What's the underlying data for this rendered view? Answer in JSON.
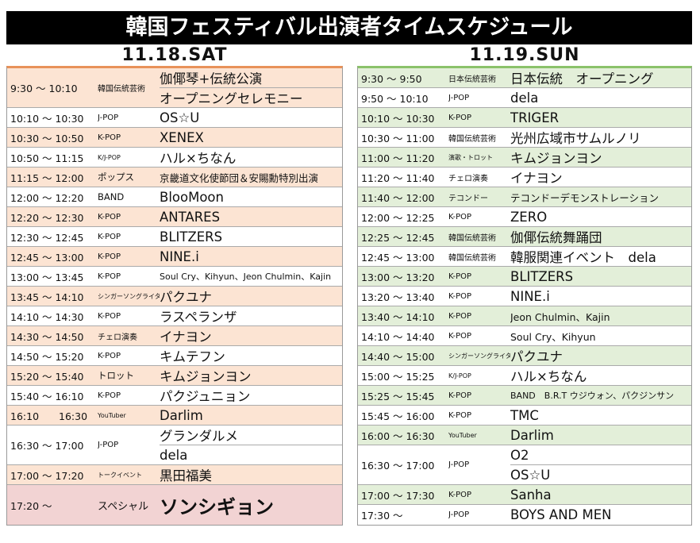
{
  "header": {
    "title": "韓国フェスティバル出演者タイムスケジュール"
  },
  "days": [
    {
      "date": "11.18.SAT",
      "rows": [
        {
          "time": "9:30 ～ 10:10",
          "genre": "韓国伝統芸術",
          "performers": [
            "伽倻琴+伝統公演",
            "オープニングセレモニー"
          ]
        },
        {
          "time": "10:10 ～ 10:30",
          "genre": "J-POP",
          "performers": [
            "OS☆U"
          ]
        },
        {
          "time": "10:30 ～ 10:50",
          "genre": "K-POP",
          "performers": [
            "XENEX"
          ]
        },
        {
          "time": "10:50 ～ 11:15",
          "genre": "K/J-POP",
          "performers": [
            "ハル×ちなん"
          ]
        },
        {
          "time": "11:15 ～ 12:00",
          "genre": "ポップス",
          "performers": [
            "京畿道文化使節団＆安賜勳特別出演"
          ]
        },
        {
          "time": "12:00 ～ 12:20",
          "genre": "BAND",
          "performers": [
            "BlooMoon"
          ]
        },
        {
          "time": "12:20 ～ 12:30",
          "genre": "K-POP",
          "performers": [
            "ANTARES"
          ]
        },
        {
          "time": "12:30 ～ 12:45",
          "genre": "K-POP",
          "performers": [
            "BLITZERS"
          ]
        },
        {
          "time": "12:45 ～ 13:00",
          "genre": "K-POP",
          "performers": [
            "NINE.i"
          ]
        },
        {
          "time": "13:00 ～ 13:45",
          "genre": "K-POP",
          "performers": [
            "Soul Cry、Kihyun、Jeon Chulmin、Kajin"
          ]
        },
        {
          "time": "13:45 ～ 14:10",
          "genre": "シンガーソングライター",
          "performers": [
            "パクユナ"
          ]
        },
        {
          "time": "14:10 ～ 14:30",
          "genre": "K-POP",
          "performers": [
            "ラスペランザ"
          ]
        },
        {
          "time": "14:30 ～ 14:50",
          "genre": "チェロ演奏",
          "performers": [
            "イナヨン"
          ]
        },
        {
          "time": "14:50 ～ 15:20",
          "genre": "K-POP",
          "performers": [
            "キムテフン"
          ]
        },
        {
          "time": "15:20 ～ 15:40",
          "genre": "トロット",
          "performers": [
            "キムジョンヨン"
          ]
        },
        {
          "time": "15:40 ～ 16:10",
          "genre": "K-POP",
          "performers": [
            "パクジュニョン"
          ]
        },
        {
          "time": "16:10　　16:30",
          "genre": "YouTuber",
          "performers": [
            "Darlim"
          ]
        },
        {
          "time": "16:30 ～ 17:00",
          "genre": "J-POP",
          "performers": [
            "グランダルメ",
            "dela"
          ]
        },
        {
          "time": "17:00 ～ 17:20",
          "genre": "トークイベント",
          "performers": [
            "黒田福美"
          ]
        },
        {
          "time": "17:20 ～",
          "genre": "スペシャル",
          "performers": [
            "ソンシギョン"
          ]
        }
      ]
    },
    {
      "date": "11.19.SUN",
      "rows": [
        {
          "time": "9:30 ～ 9:50",
          "genre": "日本伝統芸術",
          "performers": [
            "日本伝統　オープニング"
          ]
        },
        {
          "time": "9:50 ～ 10:10",
          "genre": "J-POP",
          "performers": [
            "dela"
          ]
        },
        {
          "time": "10:10 ～ 10:30",
          "genre": "K-POP",
          "performers": [
            "TRIGER"
          ]
        },
        {
          "time": "10:30 ～ 11:00",
          "genre": "韓国伝統芸術",
          "performers": [
            "光州広域市サムルノリ"
          ]
        },
        {
          "time": "11:00 ～ 11:20",
          "genre": "演歌・トロット",
          "performers": [
            "キムジョンヨン"
          ]
        },
        {
          "time": "11:20 ～ 11:40",
          "genre": "チェロ演奏",
          "performers": [
            "イナヨン"
          ]
        },
        {
          "time": "11:40 ～ 12:00",
          "genre": "テコンドー",
          "performers": [
            "テコンドーデモンストレーション"
          ]
        },
        {
          "time": "12:00 ～ 12:25",
          "genre": "K-POP",
          "performers": [
            "ZERO"
          ]
        },
        {
          "time": "12:25 ～ 12:45",
          "genre": "韓国伝統芸術",
          "performers": [
            "伽倻伝統舞踊団"
          ]
        },
        {
          "time": "12:45 ～ 13:00",
          "genre": "韓国伝統芸術",
          "performers": [
            "韓服関連イベント　dela"
          ]
        },
        {
          "time": "13:00 ～ 13:20",
          "genre": "K-POP",
          "performers": [
            "BLITZERS"
          ]
        },
        {
          "time": "13:20 ～ 13:40",
          "genre": "K-POP",
          "performers": [
            "NINE.i"
          ]
        },
        {
          "time": "13:40 ～ 14:10",
          "genre": "K-POP",
          "performers": [
            "Jeon Chulmin、Kajin"
          ]
        },
        {
          "time": "14:10 ～ 14:40",
          "genre": "K-POP",
          "performers": [
            "Soul Cry、Kihyun"
          ]
        },
        {
          "time": "14:40 ～ 15:00",
          "genre": "シンガーソングライター",
          "performers": [
            "パクユナ"
          ]
        },
        {
          "time": "15:00 ～ 15:25",
          "genre": "K/J-POP",
          "performers": [
            "ハル×ちなん"
          ]
        },
        {
          "time": "15:25 ～ 15:45",
          "genre": "K-POP",
          "performers": [
            "BAND　B.R.T ウジウォン、パクジンサン"
          ]
        },
        {
          "time": "15:45 ～ 16:00",
          "genre": "K-POP",
          "performers": [
            "TMC"
          ]
        },
        {
          "time": "16:00 ～ 16:30",
          "genre": "YouTuber",
          "performers": [
            "Darlim"
          ]
        },
        {
          "time": "16:30 ～ 17:00",
          "genre": "J-POP",
          "performers": [
            "O2",
            "OS☆U"
          ]
        },
        {
          "time": "17:00 ～ 17:30",
          "genre": "K-POP",
          "performers": [
            "Sanha"
          ]
        },
        {
          "time": "17:30 ～",
          "genre": "J-POP",
          "performers": [
            "BOYS AND MEN"
          ]
        }
      ]
    }
  ]
}
